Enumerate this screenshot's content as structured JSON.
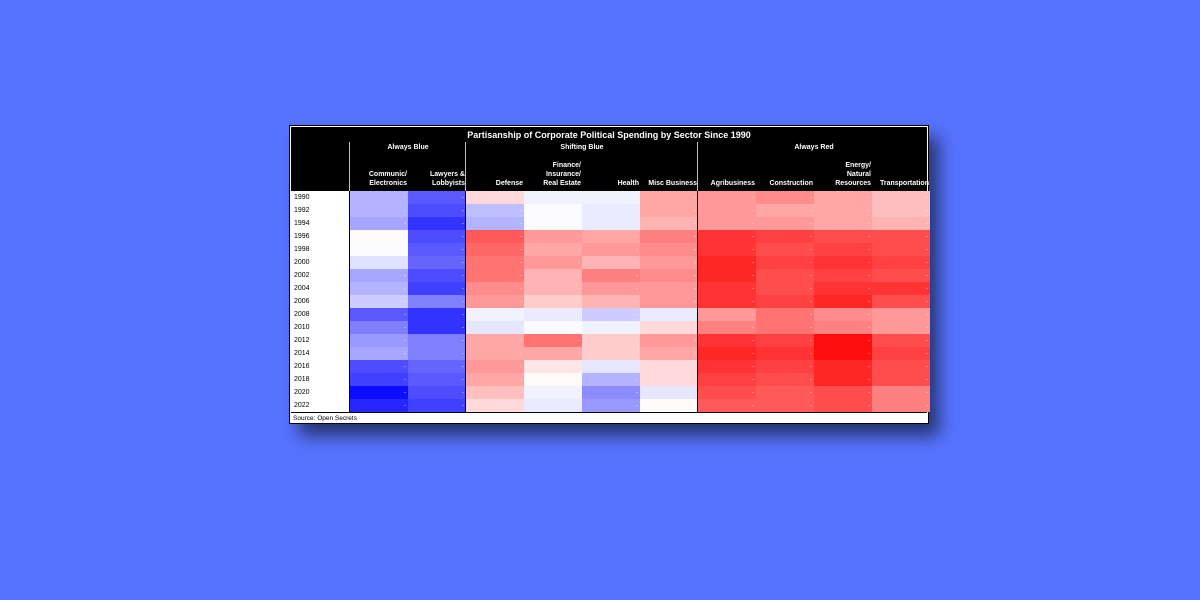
{
  "chart_data": {
    "type": "heatmap",
    "title": "Partisanship of Corporate Political Spending by Sector Since 1990",
    "groups": [
      {
        "label": "Always Blue",
        "columns": [
          "Communic/\nElectronics",
          "Lawyers &\nLobbyists"
        ]
      },
      {
        "label": "Shifting Blue",
        "columns": [
          "Defense",
          "Finance/\nInsurance/\nReal Estate",
          "Health",
          "Misc Business"
        ]
      },
      {
        "label": "Always Red",
        "columns": [
          "Agribusiness",
          "Construction",
          "Energy/\nNatural\nResources",
          "Transportation"
        ]
      }
    ],
    "rows": [
      "1990",
      "1992",
      "1994",
      "1996",
      "1998",
      "2000",
      "2002",
      "2004",
      "2006",
      "2008",
      "2010",
      "2012",
      "2014",
      "2016",
      "2018",
      "2020",
      "2022"
    ],
    "scale": "diverging: negative = Democratic (blue), positive = Republican (red), range -1 to 1",
    "colors": {
      "blue": "#0000ff",
      "red": "#ff0000",
      "neutral": "#ffffff"
    },
    "values": [
      [
        -0.3,
        -0.65,
        0.15,
        -0.05,
        -0.05,
        0.35,
        0.4,
        0.45,
        0.35,
        0.25
      ],
      [
        -0.3,
        -0.7,
        -0.25,
        -0.02,
        -0.08,
        0.35,
        0.4,
        0.35,
        0.35,
        0.25
      ],
      [
        -0.35,
        -0.8,
        -0.3,
        -0.02,
        -0.08,
        0.3,
        0.4,
        0.4,
        0.35,
        0.3
      ],
      [
        0.02,
        -0.7,
        0.65,
        0.4,
        0.35,
        0.5,
        0.8,
        0.75,
        0.7,
        0.7
      ],
      [
        -0.02,
        -0.65,
        0.6,
        0.35,
        0.4,
        0.45,
        0.8,
        0.7,
        0.75,
        0.7
      ],
      [
        -0.12,
        -0.6,
        0.55,
        0.4,
        0.3,
        0.4,
        0.85,
        0.75,
        0.8,
        0.75
      ],
      [
        -0.35,
        -0.7,
        0.55,
        0.3,
        0.5,
        0.45,
        0.85,
        0.7,
        0.75,
        0.7
      ],
      [
        -0.3,
        -0.75,
        0.45,
        0.3,
        0.4,
        0.4,
        0.8,
        0.7,
        0.8,
        0.8
      ],
      [
        -0.2,
        -0.5,
        0.4,
        0.2,
        0.3,
        0.4,
        0.8,
        0.75,
        0.85,
        0.7
      ],
      [
        -0.65,
        -0.8,
        -0.05,
        -0.08,
        -0.2,
        -0.08,
        0.4,
        0.55,
        0.45,
        0.4
      ],
      [
        -0.5,
        -0.8,
        -0.1,
        -0.02,
        -0.05,
        0.15,
        0.5,
        0.55,
        0.5,
        0.4
      ],
      [
        -0.4,
        -0.5,
        0.35,
        0.55,
        0.2,
        0.4,
        0.8,
        0.75,
        0.95,
        0.7
      ],
      [
        -0.35,
        -0.5,
        0.35,
        0.35,
        0.2,
        0.35,
        0.85,
        0.8,
        0.95,
        0.75
      ],
      [
        -0.7,
        -0.6,
        0.4,
        0.1,
        -0.1,
        0.15,
        0.8,
        0.75,
        0.85,
        0.7
      ],
      [
        -0.75,
        -0.65,
        0.35,
        0.02,
        -0.3,
        0.15,
        0.75,
        0.7,
        0.85,
        0.7
      ],
      [
        -0.95,
        -0.7,
        0.25,
        -0.05,
        -0.45,
        -0.1,
        0.7,
        0.65,
        0.7,
        0.5
      ],
      [
        -0.85,
        -0.75,
        0.15,
        -0.08,
        -0.4,
        0.02,
        0.65,
        0.65,
        0.7,
        0.5
      ]
    ]
  },
  "source": "Source: Open Secrets"
}
